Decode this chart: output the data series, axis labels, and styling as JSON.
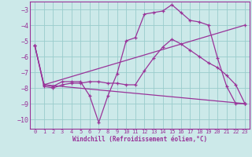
{
  "xlabel": "Windchill (Refroidissement éolien,°C)",
  "xlim": [
    -0.5,
    23.5
  ],
  "ylim": [
    -10.6,
    -2.5
  ],
  "yticks": [
    -3,
    -4,
    -5,
    -6,
    -7,
    -8,
    -9,
    -10
  ],
  "xticks": [
    0,
    1,
    2,
    3,
    4,
    5,
    6,
    7,
    8,
    9,
    10,
    11,
    12,
    13,
    14,
    15,
    16,
    17,
    18,
    19,
    20,
    21,
    22,
    23
  ],
  "bg_color": "#cce9e9",
  "grid_color": "#99cccc",
  "line_color": "#993399",
  "curves": [
    {
      "x": [
        0,
        1,
        2,
        3,
        4,
        5,
        6,
        7,
        8,
        9,
        10,
        11,
        12,
        13,
        14,
        15,
        16,
        17,
        18,
        19,
        20,
        21,
        22,
        23
      ],
      "y": [
        -5.3,
        -7.8,
        -7.9,
        -7.6,
        -7.6,
        -7.6,
        -8.5,
        -10.2,
        -8.5,
        -7.1,
        -5.0,
        -4.8,
        -3.3,
        -3.2,
        -3.1,
        -2.7,
        -3.2,
        -3.7,
        -3.8,
        -4.0,
        -6.1,
        -7.9,
        -9.0,
        -9.0
      ]
    },
    {
      "x": [
        0,
        1,
        2,
        3,
        4,
        5,
        6,
        7,
        8,
        9,
        10,
        11,
        12,
        13,
        14,
        15,
        16,
        17,
        18,
        19,
        20,
        21,
        22,
        23
      ],
      "y": [
        -5.3,
        -7.9,
        -8.0,
        -7.8,
        -7.7,
        -7.7,
        -7.6,
        -7.6,
        -7.7,
        -7.7,
        -7.8,
        -7.8,
        -6.9,
        -6.1,
        -5.4,
        -4.9,
        -5.2,
        -5.6,
        -6.0,
        -6.4,
        -6.7,
        -7.2,
        -7.8,
        -9.0
      ]
    },
    {
      "x": [
        0,
        1,
        23
      ],
      "y": [
        -5.3,
        -7.8,
        -4.0
      ]
    },
    {
      "x": [
        1,
        23
      ],
      "y": [
        -7.8,
        -9.0
      ]
    }
  ]
}
